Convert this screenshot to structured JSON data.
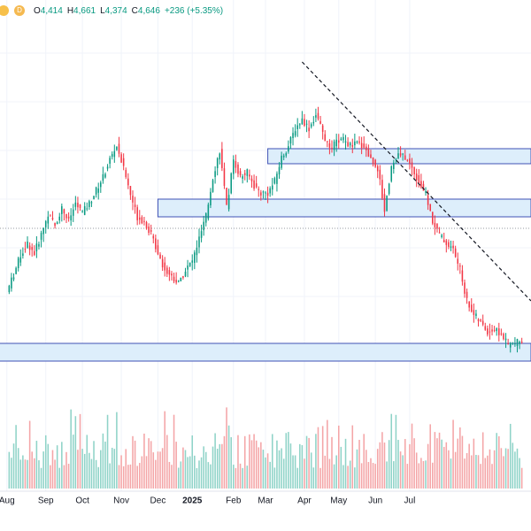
{
  "legend": {
    "interval_badge": "D",
    "open_key": "O",
    "open": "4,414",
    "high_key": "H",
    "high": "4,661",
    "low_key": "L",
    "low": "4,374",
    "close_key": "C",
    "close": "4,646",
    "change": "+236 (+5.35%)"
  },
  "colors": {
    "up": "#089981",
    "down": "#f23645",
    "vol_up": "#8fd3c8",
    "vol_down": "#f4a5a7",
    "zone_fill": "#ddeefb",
    "zone_stroke": "#3f51b5",
    "trendline": "#131722",
    "grid": "#f0f3fa",
    "axis_text": "#131722"
  },
  "chart_data": {
    "type": "candlestick",
    "ohlc_close_path": [
      [
        0,
        4.3
      ],
      [
        3,
        4.5
      ],
      [
        6,
        4.72
      ],
      [
        9,
        4.85
      ],
      [
        12,
        4.74
      ],
      [
        15,
        4.95
      ],
      [
        18,
        5.18
      ],
      [
        21,
        5.05
      ],
      [
        24,
        5.25
      ],
      [
        27,
        5.1
      ],
      [
        30,
        5.3
      ],
      [
        33,
        5.2
      ],
      [
        36,
        5.3
      ],
      [
        39,
        5.45
      ],
      [
        42,
        5.6
      ],
      [
        45,
        5.8
      ],
      [
        48,
        5.95
      ],
      [
        51,
        5.7
      ],
      [
        54,
        5.4
      ],
      [
        57,
        5.15
      ],
      [
        60,
        5.1
      ],
      [
        63,
        4.95
      ],
      [
        66,
        4.75
      ],
      [
        69,
        4.55
      ],
      [
        72,
        4.48
      ],
      [
        75,
        4.4
      ],
      [
        78,
        4.55
      ],
      [
        81,
        4.65
      ],
      [
        84,
        4.9
      ],
      [
        87,
        5.15
      ],
      [
        90,
        5.6
      ],
      [
        93,
        5.9
      ],
      [
        96,
        5.25
      ],
      [
        99,
        5.8
      ],
      [
        102,
        5.6
      ],
      [
        105,
        5.65
      ],
      [
        108,
        5.5
      ],
      [
        111,
        5.42
      ],
      [
        114,
        5.42
      ],
      [
        117,
        5.55
      ],
      [
        120,
        5.82
      ],
      [
        123,
        5.95
      ],
      [
        126,
        6.15
      ],
      [
        129,
        6.25
      ],
      [
        132,
        6.15
      ],
      [
        135,
        6.3
      ],
      [
        138,
        6.1
      ],
      [
        141,
        5.9
      ],
      [
        144,
        6.0
      ],
      [
        147,
        6.02
      ],
      [
        150,
        5.95
      ],
      [
        153,
        5.98
      ],
      [
        156,
        5.95
      ],
      [
        159,
        5.8
      ],
      [
        162,
        5.7
      ],
      [
        165,
        5.22
      ],
      [
        168,
        5.72
      ],
      [
        171,
        5.85
      ],
      [
        174,
        5.82
      ],
      [
        177,
        5.7
      ],
      [
        180,
        5.55
      ],
      [
        183,
        5.4
      ],
      [
        186,
        5.1
      ],
      [
        189,
        4.95
      ],
      [
        192,
        4.85
      ],
      [
        195,
        4.78
      ],
      [
        198,
        4.55
      ],
      [
        201,
        4.2
      ],
      [
        204,
        4.05
      ],
      [
        207,
        3.95
      ],
      [
        210,
        3.85
      ],
      [
        213,
        3.88
      ],
      [
        216,
        3.82
      ],
      [
        219,
        3.7
      ],
      [
        222,
        3.72
      ],
      [
        225,
        3.75
      ]
    ],
    "x_tick_labels": [
      "Aug",
      "Sep",
      "Oct",
      "Nov",
      "Dec",
      "2025",
      "Feb",
      "Mar",
      "Apr",
      "May",
      "Jun",
      "Jul"
    ],
    "x_tick_positions": [
      0,
      17,
      33,
      50,
      66,
      81,
      99,
      113,
      130,
      145,
      161,
      176
    ],
    "zones": [
      {
        "x0": 114,
        "x1": 229,
        "y0": 5.75,
        "y1": 5.92
      },
      {
        "x0": 66,
        "x1": 229,
        "y0": 5.15,
        "y1": 5.35
      },
      {
        "x0": -5,
        "x1": 229,
        "y0": 3.52,
        "y1": 3.72
      }
    ],
    "trendline": {
      "x0": 129,
      "y0": 6.9,
      "x1": 229,
      "y1": 4.2
    },
    "reference_line": {
      "y": 5.02
    },
    "ylim": [
      3.2,
      7.6
    ],
    "xlim": [
      -3,
      229
    ]
  }
}
